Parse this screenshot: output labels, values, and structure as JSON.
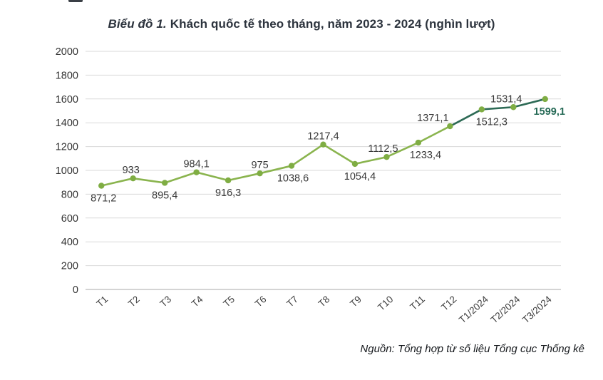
{
  "title": {
    "prefix": "Biểu đồ 1.",
    "main": "Khách quốc tế theo tháng, năm 2023 - 2024 (nghìn lượt)"
  },
  "source": {
    "text": "Nguồn: Tổng hợp từ số liệu Tổng cục Thống kê"
  },
  "colors": {
    "line_2023": "#8ab44e",
    "line_2024": "#2d6a55",
    "marker": "#7fad43",
    "grid": "#d9d9d9",
    "zero_line": "#c6c6c6",
    "tick_text": "#333333",
    "data_label_text": "#383838",
    "highlight_label_text": "#266a56",
    "title_text": "#2c333d"
  },
  "chart_data": {
    "type": "line",
    "title": "Biểu đồ 1. Khách quốc tế theo tháng, năm 2023 - 2024 (nghìn lượt)",
    "categories": [
      "T1",
      "T2",
      "T3",
      "T4",
      "T5",
      "T6",
      "T7",
      "T8",
      "T9",
      "T10",
      "T11",
      "T12",
      "T1/2024",
      "T2/2024",
      "T3/2024"
    ],
    "values": [
      871.2,
      933,
      895.4,
      984.1,
      916.3,
      975,
      1038.6,
      1217.4,
      1054.4,
      1112.5,
      1233.4,
      1371.1,
      1512.3,
      1531.4,
      1599.1
    ],
    "value_labels": [
      "871,2",
      "933",
      "895,4",
      "984,1",
      "916,3",
      "975",
      "1038,6",
      "1217,4",
      "1054,4",
      "1112,5",
      "1233,4",
      "1371,1",
      "1512,3",
      "1531,4",
      "1599,1"
    ],
    "label_positions": [
      "below",
      "above",
      "below",
      "above",
      "below",
      "above",
      "below",
      "above",
      "below",
      "above",
      "below",
      "above",
      "below",
      "above",
      "below"
    ],
    "label_dx": [
      3,
      -3,
      0,
      0,
      0,
      0,
      2,
      0,
      7,
      -5,
      10,
      -24,
      14,
      -10,
      6
    ],
    "ylim": [
      0,
      2000
    ],
    "ytick_step": 200,
    "ytick_labels": [
      "0",
      "200",
      "400",
      "600",
      "800",
      "1000",
      "1200",
      "1400",
      "1600",
      "1800",
      "2000"
    ],
    "grid": true,
    "legend_position": "none",
    "segments": [
      {
        "name": "year-2023",
        "from": 0,
        "to": 11
      },
      {
        "name": "year-2024",
        "from": 11,
        "to": 14
      }
    ],
    "highlight_label_index": 14
  }
}
